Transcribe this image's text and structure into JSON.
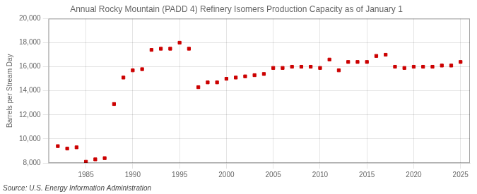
{
  "chart_data": {
    "type": "scatter",
    "title": "Annual Rocky Mountain (PADD 4) Refinery Isomers Production Capacity as of January 1",
    "ylabel": "Barrels per Stream Day",
    "annotations": [
      "Source: U.S. Energy Information Administration"
    ],
    "x": [
      1982,
      1983,
      1984,
      1985,
      1986,
      1987,
      1988,
      1989,
      1990,
      1991,
      1992,
      1993,
      1994,
      1995,
      1996,
      1997,
      1998,
      1999,
      2000,
      2001,
      2002,
      2003,
      2004,
      2005,
      2006,
      2007,
      2008,
      2009,
      2010,
      2011,
      2012,
      2013,
      2014,
      2015,
      2016,
      2017,
      2018,
      2019,
      2020,
      2021,
      2022,
      2023,
      2024,
      2025
    ],
    "values": [
      9400,
      9200,
      9300,
      8100,
      8300,
      8400,
      12900,
      15100,
      15700,
      15800,
      17400,
      17500,
      17500,
      18000,
      17500,
      14300,
      14700,
      14700,
      15000,
      15100,
      15200,
      15300,
      15400,
      15900,
      15900,
      16000,
      16000,
      16000,
      15900,
      16600,
      15700,
      16400,
      16400,
      16400,
      16900,
      17000,
      16000,
      15900,
      16000,
      16000,
      16000,
      16100,
      16100,
      16400
    ],
    "color": "#cc0000",
    "marker": "square",
    "xlim": [
      1981,
      2026
    ],
    "xticks": [
      1985,
      1990,
      1995,
      2000,
      2005,
      2010,
      2015,
      2020,
      2025
    ],
    "ylim": [
      8000,
      20000
    ],
    "yticks": [
      {
        "value": 8000,
        "label": "8,000"
      },
      {
        "value": 10000,
        "label": "10,000"
      },
      {
        "value": 12000,
        "label": "12,000"
      },
      {
        "value": 14000,
        "label": "14,000"
      },
      {
        "value": 16000,
        "label": "16,000"
      },
      {
        "value": 18000,
        "label": "18,000"
      },
      {
        "value": 20000,
        "label": "20,000"
      }
    ],
    "grid": true
  }
}
